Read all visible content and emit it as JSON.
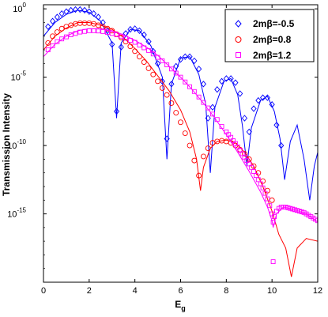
{
  "chart_data": {
    "type": "line",
    "title": "",
    "xlabel": "E",
    "xlabel_sub": "g",
    "ylabel": "Transmission Intensity",
    "y_scale": "log",
    "xlim": [
      0,
      12
    ],
    "ylim_log10": [
      -20,
      0.3
    ],
    "x_ticks": [
      0,
      2,
      4,
      6,
      8,
      10,
      12
    ],
    "x_tick_labels": [
      "0",
      "2",
      "4",
      "6",
      "8",
      "10",
      "12"
    ],
    "y_ticks_log10": [
      0,
      -5,
      -10,
      -15
    ],
    "y_tick_bases": [
      "10",
      "10",
      "10",
      "10"
    ],
    "y_tick_exponents": [
      "0",
      "-5",
      "-10",
      "-15"
    ],
    "grid": false,
    "legend_position": "top-right",
    "series": [
      {
        "name": "2mβ=-0.5",
        "color": "#0000ff",
        "marker": "diamond",
        "curve": [
          [
            0.0,
            -2.0
          ],
          [
            0.5,
            -1.0
          ],
          [
            1.0,
            -0.4
          ],
          [
            1.5,
            -0.1
          ],
          [
            2.0,
            -0.25
          ],
          [
            2.5,
            -0.9
          ],
          [
            3.0,
            -2.5
          ],
          [
            3.2,
            -8.0
          ],
          [
            3.4,
            -2.5
          ],
          [
            3.8,
            -1.5
          ],
          [
            4.2,
            -1.6
          ],
          [
            4.7,
            -2.7
          ],
          [
            5.2,
            -5.0
          ],
          [
            5.4,
            -11.0
          ],
          [
            5.6,
            -5.5
          ],
          [
            6.0,
            -3.6
          ],
          [
            6.4,
            -3.5
          ],
          [
            6.8,
            -4.8
          ],
          [
            7.1,
            -7.0
          ],
          [
            7.3,
            -12.0
          ],
          [
            7.5,
            -7.2
          ],
          [
            7.9,
            -5.3
          ],
          [
            8.2,
            -5.1
          ],
          [
            8.5,
            -6.3
          ],
          [
            8.7,
            -8.5
          ],
          [
            8.9,
            -11.5
          ],
          [
            9.1,
            -8.7
          ],
          [
            9.5,
            -6.7
          ],
          [
            9.8,
            -6.4
          ],
          [
            10.1,
            -7.5
          ],
          [
            10.35,
            -9.5
          ],
          [
            10.55,
            -12.5
          ],
          [
            10.8,
            -9.7
          ],
          [
            11.1,
            -8.5
          ],
          [
            11.4,
            -11.0
          ],
          [
            11.65,
            -14.0
          ],
          [
            11.85,
            -11.5
          ],
          [
            12.0,
            -10.5
          ]
        ],
        "markers": [
          [
            0.2,
            -1.3
          ],
          [
            0.4,
            -0.9
          ],
          [
            0.6,
            -0.6
          ],
          [
            0.8,
            -0.35
          ],
          [
            1.0,
            -0.2
          ],
          [
            1.2,
            -0.1
          ],
          [
            1.4,
            -0.05
          ],
          [
            1.6,
            -0.05
          ],
          [
            1.8,
            -0.1
          ],
          [
            2.0,
            -0.2
          ],
          [
            2.2,
            -0.35
          ],
          [
            2.4,
            -0.6
          ],
          [
            2.6,
            -1.0
          ],
          [
            2.8,
            -1.6
          ],
          [
            3.0,
            -2.6
          ],
          [
            3.2,
            -7.5
          ],
          [
            3.4,
            -2.8
          ],
          [
            3.6,
            -1.8
          ],
          [
            3.8,
            -1.5
          ],
          [
            4.0,
            -1.45
          ],
          [
            4.2,
            -1.6
          ],
          [
            4.4,
            -1.9
          ],
          [
            4.6,
            -2.4
          ],
          [
            4.8,
            -3.1
          ],
          [
            5.0,
            -4.0
          ],
          [
            5.2,
            -5.3
          ],
          [
            5.4,
            -9.5
          ],
          [
            5.6,
            -5.5
          ],
          [
            5.8,
            -4.2
          ],
          [
            6.0,
            -3.7
          ],
          [
            6.2,
            -3.5
          ],
          [
            6.4,
            -3.5
          ],
          [
            6.6,
            -3.8
          ],
          [
            6.8,
            -4.4
          ],
          [
            7.0,
            -5.5
          ],
          [
            7.2,
            -8.0
          ],
          [
            7.4,
            -7.2
          ],
          [
            7.6,
            -5.9
          ],
          [
            7.8,
            -5.3
          ],
          [
            8.0,
            -5.1
          ],
          [
            8.2,
            -5.1
          ],
          [
            8.4,
            -5.4
          ],
          [
            8.6,
            -6.2
          ],
          [
            8.8,
            -8.0
          ],
          [
            9.0,
            -9.0
          ],
          [
            9.2,
            -7.3
          ],
          [
            9.4,
            -6.7
          ],
          [
            9.6,
            -6.5
          ],
          [
            9.8,
            -6.5
          ],
          [
            10.0,
            -7.0
          ],
          [
            10.2,
            -8.5
          ],
          [
            10.4,
            -10.0
          ]
        ]
      },
      {
        "name": "2mβ=0.8",
        "color": "#ff0000",
        "marker": "circle",
        "curve": [
          [
            0.0,
            -3.0
          ],
          [
            0.5,
            -2.0
          ],
          [
            1.0,
            -1.4
          ],
          [
            1.5,
            -1.0
          ],
          [
            2.0,
            -1.0
          ],
          [
            2.5,
            -1.2
          ],
          [
            3.0,
            -1.5
          ],
          [
            3.5,
            -2.1
          ],
          [
            4.0,
            -2.9
          ],
          [
            4.5,
            -3.8
          ],
          [
            5.0,
            -4.9
          ],
          [
            5.5,
            -6.0
          ],
          [
            6.0,
            -7.4
          ],
          [
            6.4,
            -9.0
          ],
          [
            6.7,
            -11.0
          ],
          [
            6.87,
            -13.3
          ],
          [
            7.0,
            -11.6
          ],
          [
            7.3,
            -10.2
          ],
          [
            7.6,
            -9.7
          ],
          [
            8.0,
            -9.6
          ],
          [
            8.4,
            -9.8
          ],
          [
            8.8,
            -10.5
          ],
          [
            9.2,
            -11.5
          ],
          [
            9.6,
            -13.0
          ],
          [
            10.0,
            -14.8
          ],
          [
            10.3,
            -16.5
          ],
          [
            10.6,
            -17.5
          ],
          [
            10.85,
            -19.6
          ],
          [
            11.1,
            -17.5
          ],
          [
            11.5,
            -16.8
          ],
          [
            12.0,
            -17.0
          ]
        ],
        "markers": [
          [
            0.2,
            -2.5
          ],
          [
            0.4,
            -2.0
          ],
          [
            0.6,
            -1.7
          ],
          [
            0.8,
            -1.45
          ],
          [
            1.0,
            -1.3
          ],
          [
            1.2,
            -1.2
          ],
          [
            1.4,
            -1.1
          ],
          [
            1.6,
            -1.05
          ],
          [
            1.8,
            -1.05
          ],
          [
            2.0,
            -1.05
          ],
          [
            2.2,
            -1.1
          ],
          [
            2.4,
            -1.2
          ],
          [
            2.6,
            -1.3
          ],
          [
            2.8,
            -1.45
          ],
          [
            3.0,
            -1.6
          ],
          [
            3.2,
            -1.85
          ],
          [
            3.4,
            -2.1
          ],
          [
            3.6,
            -2.4
          ],
          [
            3.8,
            -2.75
          ],
          [
            4.0,
            -3.1
          ],
          [
            4.2,
            -3.5
          ],
          [
            4.4,
            -3.9
          ],
          [
            4.6,
            -4.35
          ],
          [
            4.8,
            -4.8
          ],
          [
            5.0,
            -5.3
          ],
          [
            5.2,
            -5.8
          ],
          [
            5.4,
            -6.3
          ],
          [
            5.6,
            -6.9
          ],
          [
            5.8,
            -7.6
          ],
          [
            6.0,
            -8.3
          ],
          [
            6.2,
            -9.1
          ],
          [
            6.4,
            -10.0
          ],
          [
            6.6,
            -11.1
          ],
          [
            6.8,
            -12.2
          ],
          [
            7.0,
            -10.8
          ],
          [
            7.2,
            -10.2
          ],
          [
            7.4,
            -9.8
          ],
          [
            7.6,
            -9.7
          ],
          [
            7.8,
            -9.65
          ],
          [
            8.0,
            -9.7
          ],
          [
            8.2,
            -9.8
          ],
          [
            8.4,
            -10.0
          ],
          [
            8.6,
            -10.3
          ],
          [
            8.8,
            -10.6
          ],
          [
            9.0,
            -11.0
          ],
          [
            9.2,
            -11.5
          ],
          [
            9.4,
            -12.0
          ],
          [
            9.6,
            -12.6
          ],
          [
            9.8,
            -13.3
          ],
          [
            10.0,
            -14.0
          ]
        ]
      },
      {
        "name": "2mβ=1.2",
        "color": "#ff00ff",
        "marker": "square",
        "curve": [
          [
            0.0,
            -3.5
          ],
          [
            0.5,
            -2.6
          ],
          [
            1.0,
            -2.0
          ],
          [
            1.5,
            -1.6
          ],
          [
            2.0,
            -1.45
          ],
          [
            2.5,
            -1.45
          ],
          [
            3.0,
            -1.6
          ],
          [
            3.5,
            -1.9
          ],
          [
            4.0,
            -2.3
          ],
          [
            4.5,
            -2.8
          ],
          [
            5.0,
            -3.4
          ],
          [
            5.5,
            -4.2
          ],
          [
            6.0,
            -5.0
          ],
          [
            6.5,
            -5.9
          ],
          [
            7.0,
            -6.9
          ],
          [
            7.5,
            -8.0
          ],
          [
            8.0,
            -9.2
          ],
          [
            8.5,
            -10.5
          ],
          [
            9.0,
            -11.9
          ],
          [
            9.5,
            -13.4
          ],
          [
            9.8,
            -14.5
          ],
          [
            10.0,
            -15.5
          ],
          [
            10.05,
            -16.0
          ],
          [
            10.2,
            -15.0
          ],
          [
            10.5,
            -14.5
          ],
          [
            11.0,
            -14.7
          ],
          [
            11.5,
            -15.0
          ],
          [
            12.0,
            -15.6
          ]
        ],
        "markers": [
          [
            0.2,
            -3.0
          ],
          [
            0.4,
            -2.7
          ],
          [
            0.6,
            -2.4
          ],
          [
            0.8,
            -2.2
          ],
          [
            1.0,
            -2.05
          ],
          [
            1.2,
            -1.9
          ],
          [
            1.4,
            -1.8
          ],
          [
            1.6,
            -1.7
          ],
          [
            1.8,
            -1.65
          ],
          [
            2.0,
            -1.6
          ],
          [
            2.2,
            -1.6
          ],
          [
            2.4,
            -1.62
          ],
          [
            2.6,
            -1.66
          ],
          [
            2.8,
            -1.72
          ],
          [
            3.0,
            -1.8
          ],
          [
            3.2,
            -1.9
          ],
          [
            3.4,
            -2.0
          ],
          [
            3.6,
            -2.15
          ],
          [
            3.8,
            -2.3
          ],
          [
            4.0,
            -2.45
          ],
          [
            4.2,
            -2.65
          ],
          [
            4.4,
            -2.85
          ],
          [
            4.6,
            -3.05
          ],
          [
            4.8,
            -3.3
          ],
          [
            5.0,
            -3.55
          ],
          [
            5.2,
            -3.8
          ],
          [
            5.4,
            -4.1
          ],
          [
            5.6,
            -4.4
          ],
          [
            5.8,
            -4.7
          ],
          [
            6.0,
            -5.0
          ],
          [
            6.2,
            -5.35
          ],
          [
            6.4,
            -5.7
          ],
          [
            6.6,
            -6.05
          ],
          [
            6.8,
            -6.45
          ],
          [
            7.0,
            -6.85
          ],
          [
            7.2,
            -7.25
          ],
          [
            7.4,
            -7.7
          ],
          [
            7.6,
            -8.1
          ],
          [
            7.8,
            -8.6
          ],
          [
            8.0,
            -9.0
          ],
          [
            8.1,
            -9.2
          ],
          [
            8.2,
            -9.4
          ],
          [
            8.3,
            -9.65
          ],
          [
            8.4,
            -9.85
          ],
          [
            8.5,
            -10.1
          ],
          [
            8.6,
            -10.35
          ],
          [
            8.7,
            -10.6
          ],
          [
            8.8,
            -10.85
          ],
          [
            8.9,
            -11.1
          ],
          [
            9.0,
            -11.35
          ],
          [
            9.1,
            -11.6
          ],
          [
            9.2,
            -11.9
          ],
          [
            9.3,
            -12.2
          ],
          [
            9.4,
            -12.5
          ],
          [
            9.5,
            -12.8
          ],
          [
            9.6,
            -13.1
          ],
          [
            9.7,
            -13.5
          ],
          [
            9.8,
            -13.9
          ],
          [
            9.9,
            -14.4
          ],
          [
            10.0,
            -15.0
          ],
          [
            10.05,
            -15.6
          ],
          [
            10.1,
            -15.2
          ],
          [
            10.2,
            -14.8
          ],
          [
            10.3,
            -14.6
          ],
          [
            10.4,
            -14.5
          ],
          [
            10.5,
            -14.5
          ],
          [
            10.6,
            -14.5
          ],
          [
            10.7,
            -14.55
          ],
          [
            10.8,
            -14.6
          ],
          [
            10.9,
            -14.65
          ],
          [
            11.0,
            -14.7
          ],
          [
            11.1,
            -14.75
          ],
          [
            11.2,
            -14.8
          ],
          [
            11.3,
            -14.85
          ],
          [
            11.4,
            -14.9
          ],
          [
            11.5,
            -15.0
          ],
          [
            11.6,
            -15.1
          ],
          [
            11.7,
            -15.2
          ],
          [
            11.8,
            -15.3
          ],
          [
            11.9,
            -15.4
          ],
          [
            12.0,
            -15.5
          ],
          [
            10.05,
            -18.5
          ]
        ]
      }
    ]
  }
}
